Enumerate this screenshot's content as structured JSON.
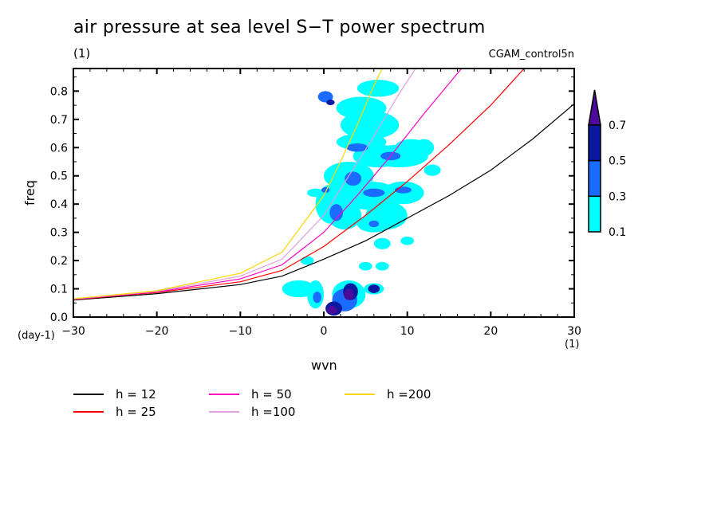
{
  "header": {
    "title": "air pressure at sea level S−T power spectrum",
    "units": "(1)",
    "dataset": "CGAM_control5n"
  },
  "chart_data": {
    "type": "heatmap",
    "title": "air pressure at sea level S−T power spectrum",
    "subtitle": "(1)",
    "annotation": "CGAM_control5n",
    "xlabel": "wvn",
    "xunits": "(1)",
    "ylabel": "freq",
    "yunits": "(day-1)",
    "xlim": [
      -30,
      30
    ],
    "ylim": [
      0,
      0.88
    ],
    "xticks": [
      -30,
      -20,
      -10,
      0,
      10,
      20,
      30
    ],
    "xtick_labels": [
      "−30",
      "−20",
      "−10",
      "0",
      "10",
      "20",
      "30"
    ],
    "yticks": [
      0.0,
      0.1,
      0.2,
      0.3,
      0.4,
      0.5,
      0.6,
      0.7,
      0.8
    ],
    "ytick_labels": [
      "0.0",
      "0.1",
      "0.2",
      "0.3",
      "0.4",
      "0.5",
      "0.6",
      "0.7",
      "0.8"
    ],
    "colorbar": {
      "levels": [
        0.1,
        0.3,
        0.5,
        0.7
      ],
      "labels": [
        "0.1",
        "0.3",
        "0.5",
        "0.7"
      ],
      "colors": [
        "#00ffff",
        "#1a6bff",
        "#0a1aa0",
        "#4b0a9a"
      ],
      "extend": "max"
    },
    "contour_blobs": [
      {
        "x": 0.2,
        "y": 0.78,
        "rx": 0.9,
        "ry": 0.02,
        "level": 1
      },
      {
        "x": 4.5,
        "y": 0.74,
        "rx": 3.0,
        "ry": 0.04,
        "level": 0
      },
      {
        "x": 6.5,
        "y": 0.81,
        "rx": 2.5,
        "ry": 0.03,
        "level": 0
      },
      {
        "x": 5.5,
        "y": 0.68,
        "rx": 3.5,
        "ry": 0.05,
        "level": 0
      },
      {
        "x": 4.5,
        "y": 0.62,
        "rx": 3.0,
        "ry": 0.03,
        "level": 0
      },
      {
        "x": 4.0,
        "y": 0.6,
        "rx": 1.3,
        "ry": 0.015,
        "level": 1
      },
      {
        "x": 6.5,
        "y": 0.57,
        "rx": 3.0,
        "ry": 0.04,
        "level": 0
      },
      {
        "x": 9.0,
        "y": 0.57,
        "rx": 3.5,
        "ry": 0.04,
        "level": 0
      },
      {
        "x": 8.0,
        "y": 0.57,
        "rx": 1.2,
        "ry": 0.015,
        "level": 1
      },
      {
        "x": 10.5,
        "y": 0.6,
        "rx": 2.0,
        "ry": 0.03,
        "level": 0
      },
      {
        "x": 3.0,
        "y": 0.5,
        "rx": 3.0,
        "ry": 0.05,
        "level": 0
      },
      {
        "x": 3.5,
        "y": 0.49,
        "rx": 1.0,
        "ry": 0.025,
        "level": 1
      },
      {
        "x": 1.0,
        "y": 0.4,
        "rx": 2.0,
        "ry": 0.07,
        "level": 0
      },
      {
        "x": 2.5,
        "y": 0.36,
        "rx": 2.0,
        "ry": 0.05,
        "level": 0
      },
      {
        "x": 1.5,
        "y": 0.37,
        "rx": 0.8,
        "ry": 0.03,
        "level": 1
      },
      {
        "x": 5.5,
        "y": 0.43,
        "rx": 3.5,
        "ry": 0.05,
        "level": 0
      },
      {
        "x": 6.0,
        "y": 0.44,
        "rx": 1.3,
        "ry": 0.015,
        "level": 1
      },
      {
        "x": 9.5,
        "y": 0.44,
        "rx": 2.5,
        "ry": 0.04,
        "level": 0
      },
      {
        "x": 9.5,
        "y": 0.45,
        "rx": 1.0,
        "ry": 0.012,
        "level": 1
      },
      {
        "x": 7.5,
        "y": 0.36,
        "rx": 2.5,
        "ry": 0.05,
        "level": 0
      },
      {
        "x": 6.0,
        "y": 0.33,
        "rx": 2.0,
        "ry": 0.03,
        "level": 0
      },
      {
        "x": 6.0,
        "y": 0.33,
        "rx": 0.6,
        "ry": 0.012,
        "level": 1
      },
      {
        "x": 7.0,
        "y": 0.26,
        "rx": 1.0,
        "ry": 0.02,
        "level": 0
      },
      {
        "x": 13.0,
        "y": 0.52,
        "rx": 1.0,
        "ry": 0.02,
        "level": 0
      },
      {
        "x": 12.0,
        "y": 0.6,
        "rx": 1.2,
        "ry": 0.03,
        "level": 0
      },
      {
        "x": -1.0,
        "y": 0.44,
        "rx": 1.0,
        "ry": 0.015,
        "level": 0
      },
      {
        "x": 0.8,
        "y": 0.76,
        "rx": 0.5,
        "ry": 0.01,
        "level": 2
      },
      {
        "x": 0.2,
        "y": 0.45,
        "rx": 0.5,
        "ry": 0.01,
        "level": 1
      },
      {
        "x": -3.0,
        "y": 0.1,
        "rx": 2.0,
        "ry": 0.03,
        "level": 0
      },
      {
        "x": -1.0,
        "y": 0.08,
        "rx": 1.0,
        "ry": 0.05,
        "level": 0
      },
      {
        "x": -0.8,
        "y": 0.07,
        "rx": 0.5,
        "ry": 0.02,
        "level": 1
      },
      {
        "x": 3.0,
        "y": 0.08,
        "rx": 2.0,
        "ry": 0.05,
        "level": 0
      },
      {
        "x": 2.5,
        "y": 0.06,
        "rx": 1.5,
        "ry": 0.04,
        "level": 1
      },
      {
        "x": 3.2,
        "y": 0.09,
        "rx": 0.9,
        "ry": 0.03,
        "level": 2
      },
      {
        "x": 3.0,
        "y": 0.08,
        "rx": 0.6,
        "ry": 0.02,
        "level": 3
      },
      {
        "x": 1.2,
        "y": 0.03,
        "rx": 1.0,
        "ry": 0.025,
        "level": 2
      },
      {
        "x": 1.0,
        "y": 0.025,
        "rx": 0.6,
        "ry": 0.015,
        "level": 3
      },
      {
        "x": 6.0,
        "y": 0.1,
        "rx": 1.2,
        "ry": 0.02,
        "level": 0
      },
      {
        "x": 6.0,
        "y": 0.1,
        "rx": 0.7,
        "ry": 0.015,
        "level": 2
      },
      {
        "x": 5.0,
        "y": 0.18,
        "rx": 0.8,
        "ry": 0.015,
        "level": 0
      },
      {
        "x": 7.0,
        "y": 0.18,
        "rx": 0.8,
        "ry": 0.015,
        "level": 0
      },
      {
        "x": -2.0,
        "y": 0.2,
        "rx": 0.8,
        "ry": 0.015,
        "level": 0
      },
      {
        "x": 10.0,
        "y": 0.27,
        "rx": 0.8,
        "ry": 0.015,
        "level": 0
      }
    ],
    "series": [
      {
        "name": "h = 12",
        "color": "#000000",
        "x": [
          -30,
          -20,
          -10,
          -5,
          0,
          5,
          10,
          15,
          20,
          25,
          30
        ],
        "y": [
          0.06,
          0.083,
          0.115,
          0.145,
          0.205,
          0.27,
          0.35,
          0.43,
          0.52,
          0.63,
          0.755
        ]
      },
      {
        "name": "h = 25",
        "color": "#ff0000",
        "x": [
          -30,
          -20,
          -10,
          -5,
          0,
          5,
          10,
          15,
          20,
          24
        ],
        "y": [
          0.062,
          0.087,
          0.125,
          0.165,
          0.25,
          0.36,
          0.48,
          0.61,
          0.75,
          0.88
        ]
      },
      {
        "name": "h = 50",
        "color": "#ff00c0",
        "x": [
          -30,
          -20,
          -10,
          -5,
          0,
          4,
          8,
          12,
          16.5
        ],
        "y": [
          0.063,
          0.089,
          0.135,
          0.185,
          0.3,
          0.43,
          0.57,
          0.72,
          0.88
        ]
      },
      {
        "name": "h =100",
        "color": "#dda0dd",
        "x": [
          -30,
          -20,
          -10,
          -5,
          0,
          3,
          6,
          9,
          11
        ],
        "y": [
          0.064,
          0.091,
          0.145,
          0.205,
          0.36,
          0.5,
          0.64,
          0.79,
          0.88
        ]
      },
      {
        "name": "h =200",
        "color": "#ffd700",
        "x": [
          -30,
          -20,
          -10,
          -5,
          0,
          2,
          4,
          6,
          7
        ],
        "y": [
          0.065,
          0.093,
          0.155,
          0.23,
          0.43,
          0.55,
          0.68,
          0.82,
          0.88
        ]
      }
    ]
  },
  "legend": [
    {
      "label": "h = 12",
      "color": "#000000"
    },
    {
      "label": "h = 25",
      "color": "#ff0000"
    },
    {
      "label": "h = 50",
      "color": "#ff00c0"
    },
    {
      "label": "h =100",
      "color": "#dda0dd"
    },
    {
      "label": "h =200",
      "color": "#ffd700"
    }
  ]
}
